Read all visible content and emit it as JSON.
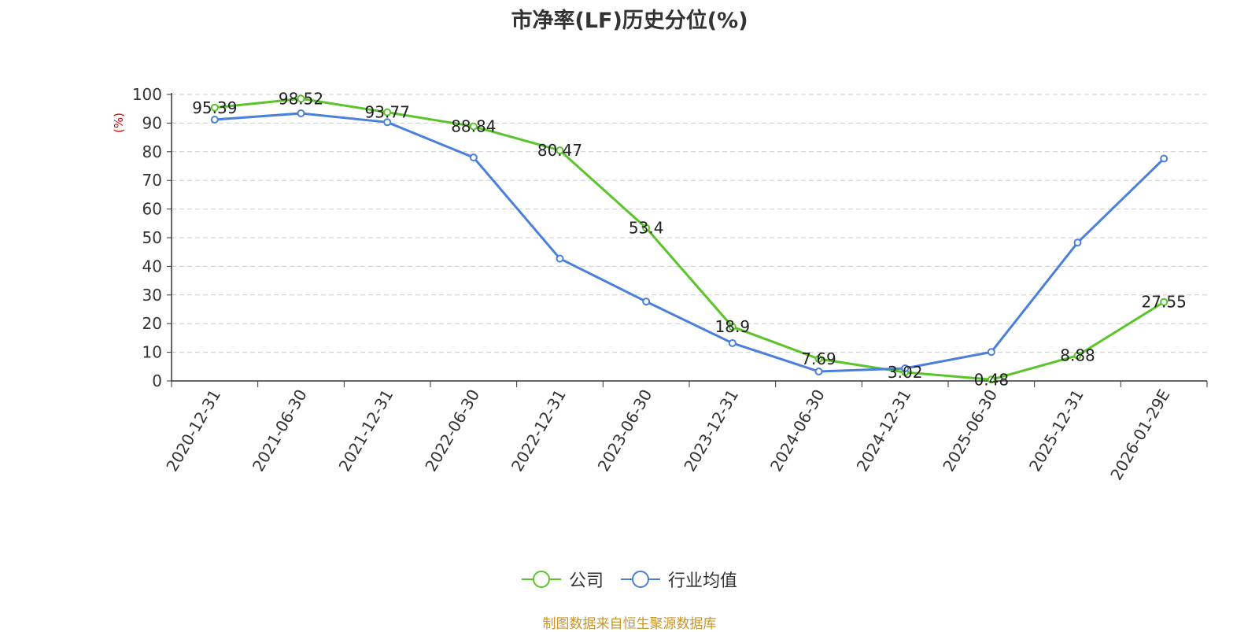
{
  "title": "市净率(LF)历史分位(%)",
  "source_note": "制图数据来自恒生聚源数据库",
  "colors": {
    "company": "#5ac42a",
    "industry": "#4a7fdc",
    "unit_label": "#e00000",
    "source_note": "#c8962a",
    "grid": "#cccccc",
    "axis": "#333333"
  },
  "chart_data": {
    "type": "line",
    "title": "市净率(LF)历史分位(%)",
    "ylabel": "(%)",
    "xlabel": "",
    "ylim": [
      0,
      100
    ],
    "yticks": [
      0,
      10,
      20,
      30,
      40,
      50,
      60,
      70,
      80,
      90,
      100
    ],
    "grid": true,
    "legend_position": "bottom",
    "categories": [
      "2020-12-31",
      "2021-06-30",
      "2021-12-31",
      "2022-06-30",
      "2022-12-31",
      "2023-06-30",
      "2023-12-31",
      "2024-06-30",
      "2024-12-31",
      "2025-06-30",
      "2025-12-31",
      "2026-01-29E"
    ],
    "series": [
      {
        "name": "公司",
        "color": "#5ac42a",
        "values": [
          95.39,
          98.52,
          93.77,
          88.84,
          80.47,
          53.4,
          18.9,
          7.69,
          3.02,
          0.48,
          8.88,
          27.55
        ],
        "labels": [
          "95.39",
          "98.52",
          "93.77",
          "88.84",
          "80.47",
          "53.4",
          "18.9",
          "7.69",
          "3.02",
          "0.48",
          "8.88",
          "27.55"
        ]
      },
      {
        "name": "行业均值",
        "color": "#4a7fdc",
        "values": [
          91.2,
          93.4,
          90.3,
          78.0,
          42.7,
          27.7,
          13.2,
          3.3,
          4.4,
          10.1,
          48.3,
          77.6
        ]
      }
    ]
  }
}
